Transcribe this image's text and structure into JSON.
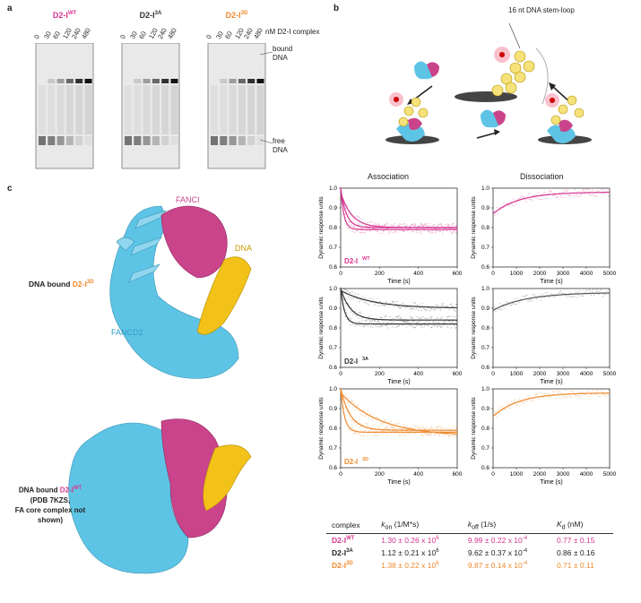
{
  "labels": {
    "a": "a",
    "b": "b",
    "c": "c"
  },
  "panel_a": {
    "titles": [
      {
        "base": "D2-I",
        "sup": "WT",
        "color": "#d6368f"
      },
      {
        "base": "D2-I",
        "sup": "3A",
        "color": "#333333"
      },
      {
        "base": "D2-I",
        "sup": "3D",
        "color": "#ee8a2d"
      }
    ],
    "conc": [
      "0",
      "30",
      "60",
      "120",
      "240",
      "480"
    ],
    "conc_unit": "nM D2-I complex",
    "bound_label_1": "bound",
    "bound_label_2": "DNA",
    "free_label_1": "free",
    "free_label_2": "DNA"
  },
  "panel_b": {
    "stemloop_label": "16 nt DNA stem-loop",
    "assoc_header": "Association",
    "dissoc_header": "Dissociation"
  },
  "panel_c": {
    "top_protein_1": "FANCI",
    "top_dna": "DNA",
    "top_protein_2": "FANCD2",
    "top_caption_prefix": "DNA bound ",
    "top_caption_name": "D2-I",
    "top_caption_sup": "3D",
    "bottom_caption_prefix": "DNA bound ",
    "bottom_caption_name": "D2-I",
    "bottom_caption_sup": "WT",
    "bottom_caption_line2": "(PDB 7KZS,",
    "bottom_caption_line3": "FA core complex not shown)"
  },
  "colors": {
    "wt": "#d6368f",
    "a3": "#333333",
    "d3": "#ee8a2d",
    "fancd2": "#5ec4e6",
    "fanci": "#c9448a",
    "dna": "#f2c21b"
  },
  "chart_data": [
    {
      "type": "line",
      "name": "assoc-wt",
      "title": "D2-I WT association",
      "xlabel": "Time (s)",
      "ylabel": "Dynamic response units",
      "xlim": [
        0,
        600
      ],
      "ylim": [
        0.6,
        1.0
      ],
      "xticks": [
        0,
        200,
        400,
        600
      ],
      "yticks": [
        0.6,
        0.7,
        0.8,
        0.9,
        1.0
      ],
      "tag": "D2-I",
      "tag_sup": "WT",
      "series": [
        {
          "name": "fast",
          "y0": 1.0,
          "yinf": 0.79,
          "k": 0.06
        },
        {
          "name": "mid",
          "y0": 1.0,
          "yinf": 0.8,
          "k": 0.035
        },
        {
          "name": "slow",
          "y0": 0.98,
          "yinf": 0.8,
          "k": 0.018
        }
      ],
      "color": "#d6368f"
    },
    {
      "type": "line",
      "name": "dissoc-wt",
      "title": "D2-I WT dissociation",
      "xlabel": "Time (s)",
      "ylabel": "Dynamic response units",
      "xlim": [
        0,
        5000
      ],
      "ylim": [
        0.6,
        1.0
      ],
      "xticks": [
        0,
        1000,
        2000,
        3000,
        4000,
        5000
      ],
      "yticks": [
        0.6,
        0.7,
        0.8,
        0.9,
        1.0
      ],
      "series": [
        {
          "name": "fit",
          "y0": 0.87,
          "yinf": 0.98,
          "k": 0.0009
        }
      ],
      "color": "#d6368f"
    },
    {
      "type": "line",
      "name": "assoc-3a",
      "title": "D2-I 3A association",
      "xlabel": "Time (s)",
      "ylabel": "Dynamic response units",
      "xlim": [
        0,
        600
      ],
      "ylim": [
        0.6,
        1.0
      ],
      "xticks": [
        0,
        200,
        400,
        600
      ],
      "yticks": [
        0.6,
        0.7,
        0.8,
        0.9,
        1.0
      ],
      "tag": "D2-I",
      "tag_sup": "3A",
      "series": [
        {
          "name": "fast",
          "y0": 1.0,
          "yinf": 0.82,
          "k": 0.05
        },
        {
          "name": "mid",
          "y0": 1.0,
          "yinf": 0.84,
          "k": 0.02
        },
        {
          "name": "slow",
          "y0": 0.99,
          "yinf": 0.9,
          "k": 0.006
        }
      ],
      "color": "#333333"
    },
    {
      "type": "line",
      "name": "dissoc-3a",
      "title": "D2-I 3A dissociation",
      "xlabel": "Time (s)",
      "ylabel": "Dynamic response units",
      "xlim": [
        0,
        5000
      ],
      "ylim": [
        0.6,
        1.0
      ],
      "xticks": [
        0,
        1000,
        2000,
        3000,
        4000,
        5000
      ],
      "yticks": [
        0.6,
        0.7,
        0.8,
        0.9,
        1.0
      ],
      "series": [
        {
          "name": "fit",
          "y0": 0.89,
          "yinf": 0.98,
          "k": 0.0007
        }
      ],
      "color": "#555555"
    },
    {
      "type": "line",
      "name": "assoc-3d",
      "title": "D2-I 3D association",
      "xlabel": "Time (s)",
      "ylabel": "Dynamic response units",
      "xlim": [
        0,
        600
      ],
      "ylim": [
        0.6,
        1.0
      ],
      "xticks": [
        0,
        200,
        400,
        600
      ],
      "yticks": [
        0.6,
        0.7,
        0.8,
        0.9,
        1.0
      ],
      "tag": "D2-I",
      "tag_sup": "3D",
      "series": [
        {
          "name": "fast",
          "y0": 1.0,
          "yinf": 0.78,
          "k": 0.05
        },
        {
          "name": "mid",
          "y0": 1.0,
          "yinf": 0.79,
          "k": 0.02
        },
        {
          "name": "slow",
          "y0": 0.98,
          "yinf": 0.76,
          "k": 0.005
        }
      ],
      "color": "#ee8a2d"
    },
    {
      "type": "line",
      "name": "dissoc-3d",
      "title": "D2-I 3D dissociation",
      "xlabel": "Time (s)",
      "ylabel": "Dynamic response units",
      "xlim": [
        0,
        5000
      ],
      "ylim": [
        0.6,
        1.0
      ],
      "xticks": [
        0,
        1000,
        2000,
        3000,
        4000,
        5000
      ],
      "yticks": [
        0.6,
        0.7,
        0.8,
        0.9,
        1.0
      ],
      "series": [
        {
          "name": "fit",
          "y0": 0.86,
          "yinf": 0.98,
          "k": 0.0009
        }
      ],
      "color": "#ee8a2d"
    }
  ],
  "kinetics_table": {
    "headers": {
      "complex": "complex",
      "kon": "k",
      "kon_sub": "on",
      "kon_unit": " (1/M*s)",
      "koff": "k",
      "koff_sub": "off",
      "koff_unit": " (1/s)",
      "kd": "K",
      "kd_sub": "d",
      "kd_unit": " (nM)"
    },
    "rows": [
      {
        "name": "D2-I",
        "sup": "WT",
        "kon": "1.30 ± 0.26 x 10",
        "kon_exp": "6",
        "koff": "9.99 ± 0.22 x 10",
        "koff_exp": "-4",
        "kd": "0.77 ± 0.15",
        "color": "#d6368f"
      },
      {
        "name": "D2-I",
        "sup": "3A",
        "kon": "1.12 ± 0.21 x 10",
        "kon_exp": "6",
        "koff": "9.62 ± 0.37 x 10",
        "koff_exp": "-4",
        "kd": "0.86 ± 0.16",
        "color": "#222222"
      },
      {
        "name": "D2-I",
        "sup": "3D",
        "kon": "1.38 ± 0.22 x 10",
        "kon_exp": "6",
        "koff": "9.87 ± 0.14 x 10",
        "koff_exp": "-4",
        "kd": "0.71 ± 0.11",
        "color": "#ee8a2d"
      }
    ]
  }
}
